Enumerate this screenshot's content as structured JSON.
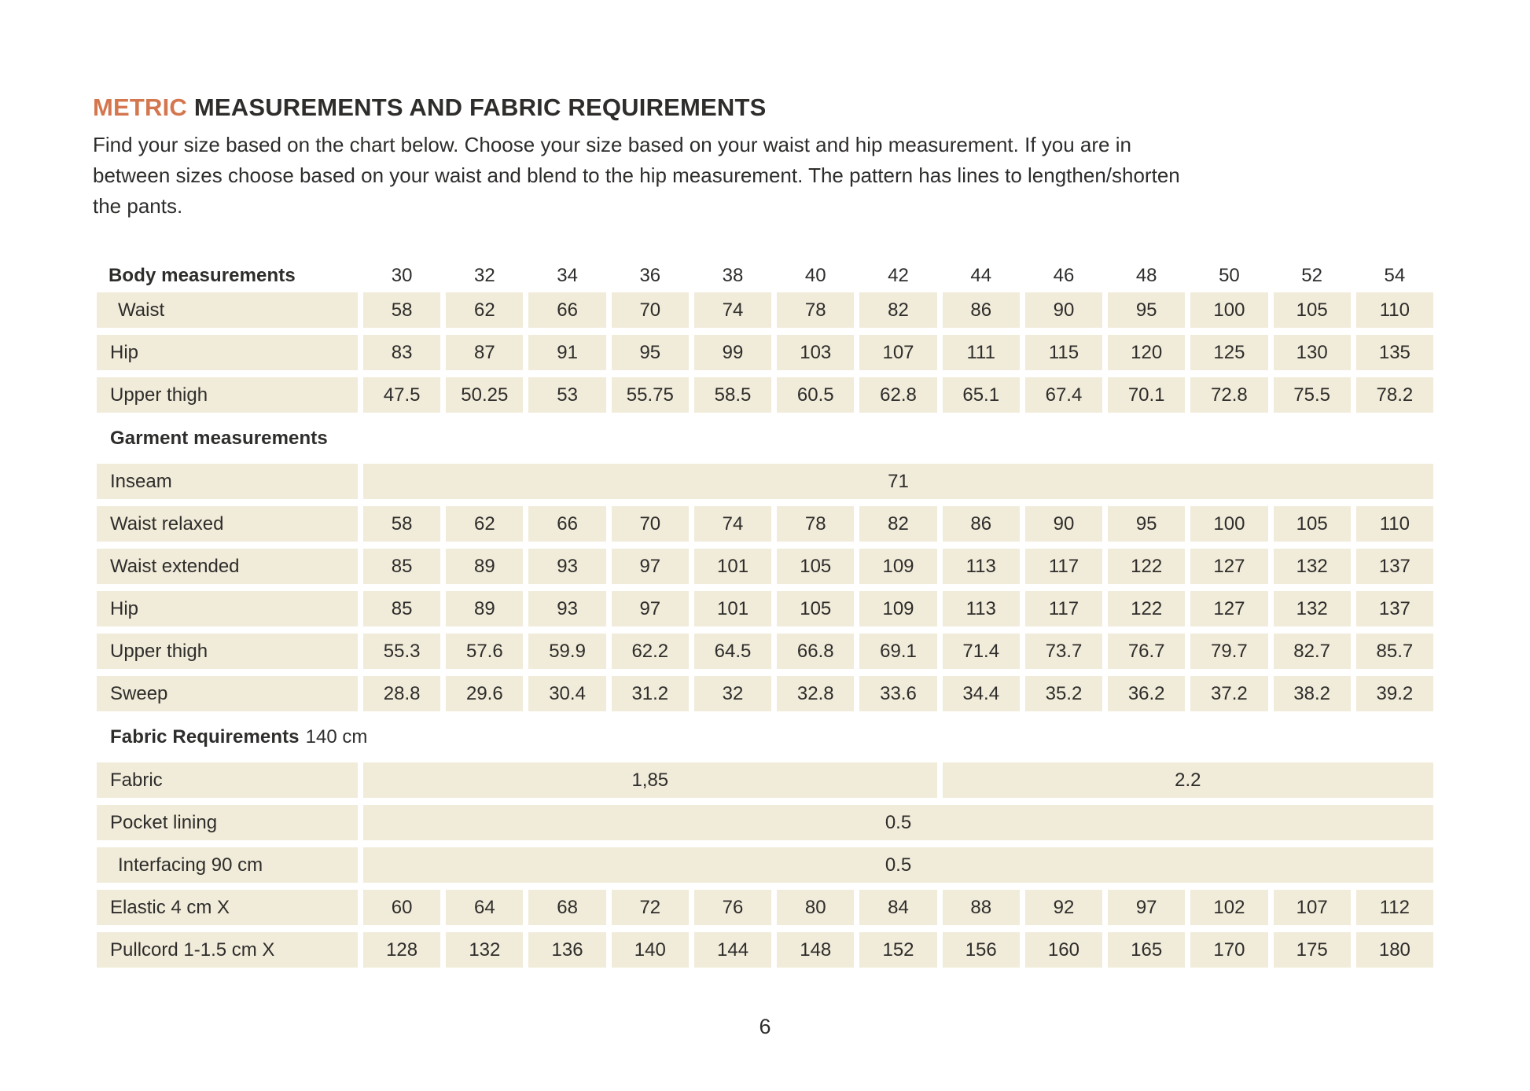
{
  "colors": {
    "accent_orange": "#d4764e",
    "cell_background": "#f1ebd9",
    "text": "#2e2d2b"
  },
  "title": {
    "highlight": "METRIC",
    "rest": " MEASUREMENTS AND FABRIC REQUIREMENTS"
  },
  "intro": {
    "lines": [
      "Find your size based on the chart below. Choose your size based on your waist and hip measurement. If you are in",
      "between sizes choose based on your waist and blend to the hip measurement. The pattern has lines to lengthen/shorten",
      "the pants."
    ]
  },
  "page_number": "6",
  "table": {
    "sizes": [
      "30",
      "32",
      "34",
      "36",
      "38",
      "40",
      "42",
      "44",
      "46",
      "48",
      "50",
      "52",
      "54"
    ],
    "sections": [
      {
        "header": {
          "label": "Body measurements",
          "suffix": "",
          "show_sizes": true
        },
        "rows": [
          {
            "label": "Waist",
            "indent": true,
            "type": "values",
            "values": [
              "58",
              "62",
              "66",
              "70",
              "74",
              "78",
              "82",
              "86",
              "90",
              "95",
              "100",
              "105",
              "110"
            ]
          },
          {
            "label": "Hip",
            "indent": false,
            "type": "values",
            "values": [
              "83",
              "87",
              "91",
              "95",
              "99",
              "103",
              "107",
              "111",
              "115",
              "120",
              "125",
              "130",
              "135"
            ]
          },
          {
            "label": "Upper thigh",
            "indent": false,
            "type": "values",
            "values": [
              "47.5",
              "50.25",
              "53",
              "55.75",
              "58.5",
              "60.5",
              "62.8",
              "65.1",
              "67.4",
              "70.1",
              "72.8",
              "75.5",
              "78.2"
            ]
          }
        ]
      },
      {
        "header": {
          "label": "Garment measurements",
          "suffix": "",
          "show_sizes": false
        },
        "rows": [
          {
            "label": "Inseam",
            "indent": false,
            "type": "merged",
            "spans": [
              {
                "cols": 13,
                "value": "71"
              }
            ]
          },
          {
            "label": "Waist relaxed",
            "indent": false,
            "type": "values",
            "values": [
              "58",
              "62",
              "66",
              "70",
              "74",
              "78",
              "82",
              "86",
              "90",
              "95",
              "100",
              "105",
              "110"
            ]
          },
          {
            "label": "Waist extended",
            "indent": false,
            "type": "values",
            "values": [
              "85",
              "89",
              "93",
              "97",
              "101",
              "105",
              "109",
              "113",
              "117",
              "122",
              "127",
              "132",
              "137"
            ]
          },
          {
            "label": "Hip",
            "indent": false,
            "type": "values",
            "values": [
              "85",
              "89",
              "93",
              "97",
              "101",
              "105",
              "109",
              "113",
              "117",
              "122",
              "127",
              "132",
              "137"
            ]
          },
          {
            "label": "Upper thigh",
            "indent": false,
            "type": "values",
            "values": [
              "55.3",
              "57.6",
              "59.9",
              "62.2",
              "64.5",
              "66.8",
              "69.1",
              "71.4",
              "73.7",
              "76.7",
              "79.7",
              "82.7",
              "85.7"
            ]
          },
          {
            "label": "Sweep",
            "indent": false,
            "type": "values",
            "values": [
              "28.8",
              "29.6",
              "30.4",
              "31.2",
              "32",
              "32.8",
              "33.6",
              "34.4",
              "35.2",
              "36.2",
              "37.2",
              "38.2",
              "39.2"
            ]
          }
        ]
      },
      {
        "header": {
          "label": "Fabric Requirements",
          "suffix": "140 cm",
          "show_sizes": false
        },
        "rows": [
          {
            "label": "Fabric",
            "indent": false,
            "type": "merged",
            "spans": [
              {
                "cols": 7,
                "value": "1,85"
              },
              {
                "cols": 6,
                "value": "2.2"
              }
            ]
          },
          {
            "label": "Pocket lining",
            "indent": false,
            "type": "merged",
            "spans": [
              {
                "cols": 13,
                "value": "0.5"
              }
            ]
          },
          {
            "label": "Interfacing 90 cm",
            "indent": true,
            "type": "merged",
            "spans": [
              {
                "cols": 13,
                "value": "0.5"
              }
            ]
          },
          {
            "label": "Elastic 4 cm X",
            "indent": false,
            "type": "values",
            "values": [
              "60",
              "64",
              "68",
              "72",
              "76",
              "80",
              "84",
              "88",
              "92",
              "97",
              "102",
              "107",
              "112"
            ]
          },
          {
            "label": "Pullcord 1-1.5 cm X",
            "indent": false,
            "type": "values",
            "values": [
              "128",
              "132",
              "136",
              "140",
              "144",
              "148",
              "152",
              "156",
              "160",
              "165",
              "170",
              "175",
              "180"
            ]
          }
        ]
      }
    ]
  }
}
